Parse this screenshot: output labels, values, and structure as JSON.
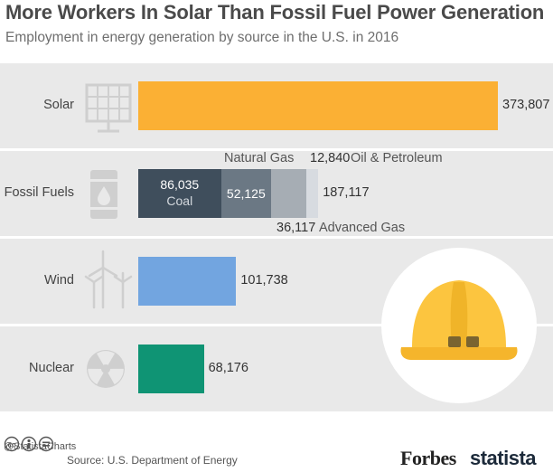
{
  "header": {
    "title": "More Workers In Solar Than Fossil Fuel Power Generation",
    "subtitle": "Employment in energy generation by source in the U.S. in 2016"
  },
  "chart_data": {
    "type": "bar",
    "orientation": "horizontal",
    "stacked": true,
    "title": "More Workers In Solar Than Fossil Fuel Power Generation",
    "subtitle": "Employment in energy generation by source in the U.S. in 2016",
    "categories": [
      "Solar",
      "Fossil Fuels",
      "Wind",
      "Nuclear"
    ],
    "values": [
      373807,
      187117,
      101738,
      68176
    ],
    "value_labels": [
      "373,807",
      "187,117",
      "101,738",
      "68,176"
    ],
    "fossil_breakdown": [
      {
        "name": "Coal",
        "value": 86035,
        "label": "86,035"
      },
      {
        "name": "Natural Gas",
        "value": 52125,
        "label": "52,125"
      },
      {
        "name": "Advanced Gas",
        "value": 36117,
        "label": "36,117"
      },
      {
        "name": "Oil & Petroleum",
        "value": 12840,
        "label": "12,840"
      }
    ],
    "grid": false,
    "legend": "none",
    "colors": {
      "Solar": "#fbb034",
      "Coal": "#3f4e5c",
      "Natural Gas": "#6b7884",
      "Advanced Gas": "#a6adb4",
      "Oil & Petroleum": "#d7dbe0",
      "Wind": "#72a5e0",
      "Nuclear": "#0f9474"
    }
  },
  "colors": {
    "band": "#e9e9e9",
    "icon": "#cfcfcf",
    "helmet": "#fcc53f"
  },
  "icons": {
    "solar": "solar-panel-icon",
    "fossil": "oil-barrel-icon",
    "wind": "wind-turbine-icon",
    "nuclear": "radiation-icon",
    "decor": "hard-hat-icon"
  },
  "footer": {
    "handle": "@StatistaCharts",
    "source": "Source: U.S. Department of Energy",
    "brand_forbes": "Forbes",
    "brand_statista": "statista"
  }
}
